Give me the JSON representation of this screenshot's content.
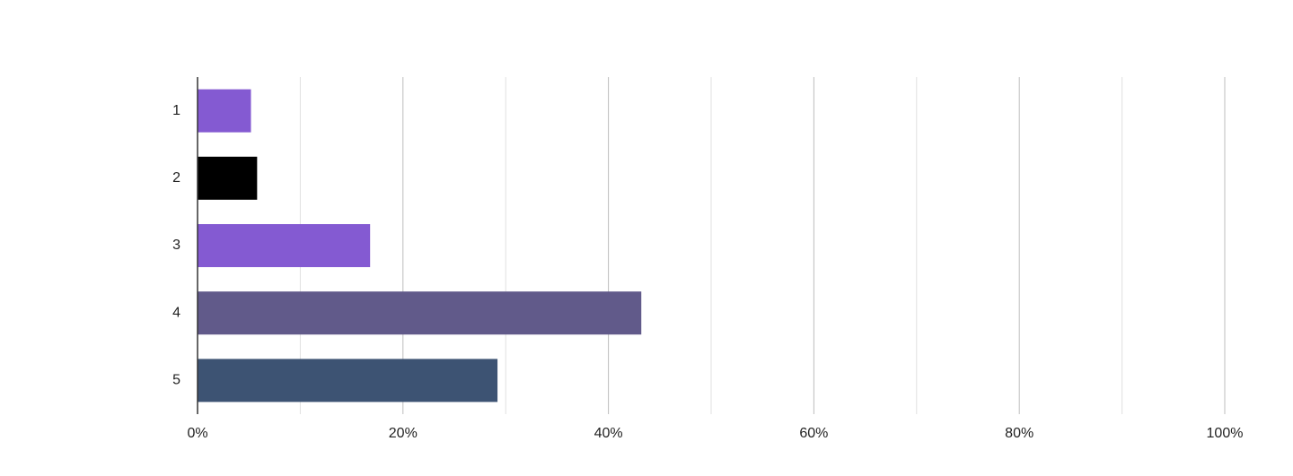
{
  "chart_data": {
    "type": "hbar",
    "categories": [
      "1",
      "2",
      "3",
      "4",
      "5"
    ],
    "values": [
      5.2,
      5.8,
      16.8,
      43.2,
      29.2
    ],
    "colors": [
      "#845ad2",
      "#000000",
      "#845ad2",
      "#615a8a",
      "#3d5373"
    ],
    "xlim": [
      0,
      100
    ],
    "xticks": [
      {
        "value": 0,
        "label": "0%"
      },
      {
        "value": 20,
        "label": "20%"
      },
      {
        "value": 40,
        "label": "40%"
      },
      {
        "value": 60,
        "label": "60%"
      },
      {
        "value": 80,
        "label": "80%"
      },
      {
        "value": 100,
        "label": "100%"
      }
    ],
    "minor_xticks": [
      10,
      30,
      50,
      70,
      90
    ],
    "grid": true
  }
}
